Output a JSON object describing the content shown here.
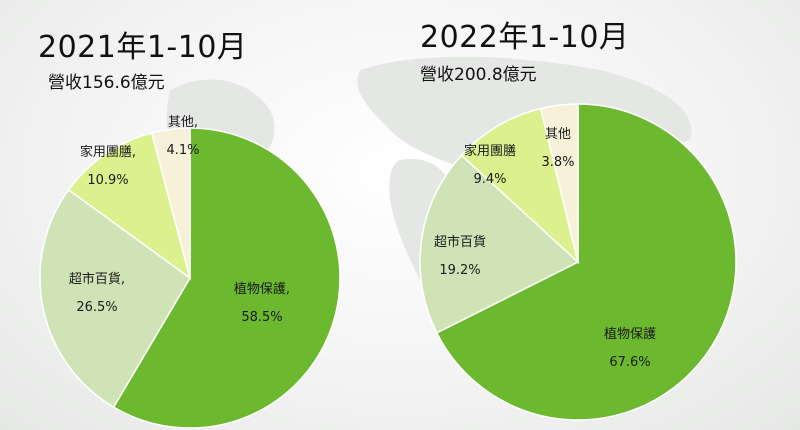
{
  "panels": [
    {
      "title": "2021年1-10月",
      "subtitle": "營收156.6億元"
    },
    {
      "title": "2022年1-10月",
      "subtitle": "營收200.8億元"
    }
  ],
  "colors": {
    "植物保護": "#6cb82f",
    "超市百貨": "#cfe3b6",
    "家用團膳": "#dcf08e",
    "其他": "#f6f1d8"
  },
  "chart_data": [
    {
      "type": "pie",
      "title": "2021年1-10月",
      "subtitle": "營收156.6億元",
      "slices": [
        {
          "category": "植物保護",
          "value": 58.5,
          "label_lines": [
            "植物保護,",
            "58.5%"
          ]
        },
        {
          "category": "超市百貨",
          "value": 26.5,
          "label_lines": [
            "超市百貨,",
            "26.5%"
          ]
        },
        {
          "category": "家用團膳",
          "value": 10.9,
          "label_lines": [
            "家用團膳,",
            "10.9%"
          ]
        },
        {
          "category": "其他",
          "value": 4.1,
          "label_lines": [
            "其他,",
            "4.1%"
          ]
        }
      ]
    },
    {
      "type": "pie",
      "title": "2022年1-10月",
      "subtitle": "營收200.8億元",
      "slices": [
        {
          "category": "植物保護",
          "value": 67.6,
          "label_lines": [
            "植物保護",
            "67.6%"
          ]
        },
        {
          "category": "超市百貨",
          "value": 19.2,
          "label_lines": [
            "超市百貨",
            "19.2%"
          ]
        },
        {
          "category": "家用團膳",
          "value": 9.4,
          "label_lines": [
            "家用團膳",
            "9.4%"
          ]
        },
        {
          "category": "其他",
          "value": 3.8,
          "label_lines": [
            "其他",
            "3.8%"
          ]
        }
      ]
    }
  ]
}
